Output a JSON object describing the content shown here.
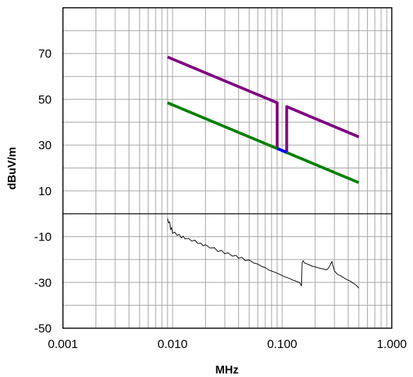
{
  "chart_data": {
    "type": "line",
    "xlabel": "MHz",
    "ylabel": "dBuV/m",
    "x_scale": "log",
    "xlim": [
      0.001,
      1.0
    ],
    "ylim": [
      -50,
      90
    ],
    "x_ticks": [
      0.001,
      0.01,
      0.1,
      1.0
    ],
    "x_tick_labels": [
      "0.001",
      "0.010",
      "0.100",
      "1.000"
    ],
    "y_ticks": [
      -50,
      -30,
      -10,
      10,
      30,
      50,
      70
    ],
    "y_tick_labels": [
      "-50",
      "-30",
      "-10",
      "10",
      "30",
      "50",
      "70"
    ],
    "grid": true,
    "legend": "none",
    "colors": {
      "upper_limit": "#800080",
      "lower_limit": "#008000",
      "transition": "#0000ff",
      "measurement": "#000000",
      "grid": "#a0a0a0",
      "zero_line": "#000000"
    },
    "series": [
      {
        "key": "upper_limit",
        "points": [
          [
            0.009,
            68.5
          ],
          [
            0.09,
            48.5
          ],
          [
            0.09,
            28.6
          ],
          [
            0.11,
            26.8
          ],
          [
            0.11,
            46.8
          ],
          [
            0.5,
            33.6
          ]
        ]
      },
      {
        "key": "lower_limit",
        "points": [
          [
            0.009,
            48.5
          ],
          [
            0.5,
            13.6
          ]
        ]
      },
      {
        "key": "transition",
        "points": [
          [
            0.09,
            28.6
          ],
          [
            0.11,
            26.8
          ]
        ]
      },
      {
        "key": "measurement",
        "points": [
          [
            0.009,
            -2
          ],
          [
            0.0092,
            -4
          ],
          [
            0.0094,
            -3.5
          ],
          [
            0.0096,
            -7
          ],
          [
            0.0098,
            -6
          ],
          [
            0.01,
            -8.5
          ],
          [
            0.0105,
            -8
          ],
          [
            0.011,
            -9.5
          ],
          [
            0.0115,
            -9
          ],
          [
            0.012,
            -10.5
          ],
          [
            0.0125,
            -9.8
          ],
          [
            0.013,
            -11
          ],
          [
            0.014,
            -10.8
          ],
          [
            0.015,
            -12
          ],
          [
            0.016,
            -11.5
          ],
          [
            0.017,
            -13
          ],
          [
            0.018,
            -12.8
          ],
          [
            0.019,
            -14
          ],
          [
            0.02,
            -13.5
          ],
          [
            0.022,
            -15
          ],
          [
            0.024,
            -14.8
          ],
          [
            0.026,
            -16.5
          ],
          [
            0.028,
            -16
          ],
          [
            0.03,
            -17.5
          ],
          [
            0.032,
            -17
          ],
          [
            0.035,
            -18.5
          ],
          [
            0.038,
            -18.2
          ],
          [
            0.04,
            -19.5
          ],
          [
            0.043,
            -19
          ],
          [
            0.046,
            -20.5
          ],
          [
            0.05,
            -20.2
          ],
          [
            0.055,
            -21.5
          ],
          [
            0.06,
            -22
          ],
          [
            0.065,
            -23
          ],
          [
            0.07,
            -23.5
          ],
          [
            0.075,
            -24.5
          ],
          [
            0.08,
            -25
          ],
          [
            0.085,
            -25.5
          ],
          [
            0.09,
            -26
          ],
          [
            0.095,
            -26.5
          ],
          [
            0.1,
            -27
          ],
          [
            0.105,
            -27.5
          ],
          [
            0.11,
            -27.8
          ],
          [
            0.115,
            -28.2
          ],
          [
            0.12,
            -28.5
          ],
          [
            0.125,
            -29
          ],
          [
            0.13,
            -29.2
          ],
          [
            0.135,
            -29.6
          ],
          [
            0.14,
            -29.8
          ],
          [
            0.145,
            -30.2
          ],
          [
            0.15,
            -31.5
          ],
          [
            0.152,
            -21.5
          ],
          [
            0.155,
            -20.5
          ],
          [
            0.16,
            -21.5
          ],
          [
            0.17,
            -22
          ],
          [
            0.18,
            -22.5
          ],
          [
            0.19,
            -23
          ],
          [
            0.2,
            -23.2
          ],
          [
            0.21,
            -23.5
          ],
          [
            0.22,
            -23.8
          ],
          [
            0.23,
            -24
          ],
          [
            0.24,
            -24.2
          ],
          [
            0.25,
            -24.5
          ],
          [
            0.26,
            -24.2
          ],
          [
            0.27,
            -23
          ],
          [
            0.28,
            -21.5
          ],
          [
            0.285,
            -20.8
          ],
          [
            0.29,
            -22.5
          ],
          [
            0.3,
            -25
          ],
          [
            0.32,
            -26.5
          ],
          [
            0.34,
            -27
          ],
          [
            0.36,
            -27.8
          ],
          [
            0.38,
            -28.5
          ],
          [
            0.4,
            -29
          ],
          [
            0.42,
            -29.5
          ],
          [
            0.44,
            -30.2
          ],
          [
            0.46,
            -30.8
          ],
          [
            0.48,
            -31.5
          ],
          [
            0.5,
            -32.5
          ]
        ]
      }
    ]
  }
}
